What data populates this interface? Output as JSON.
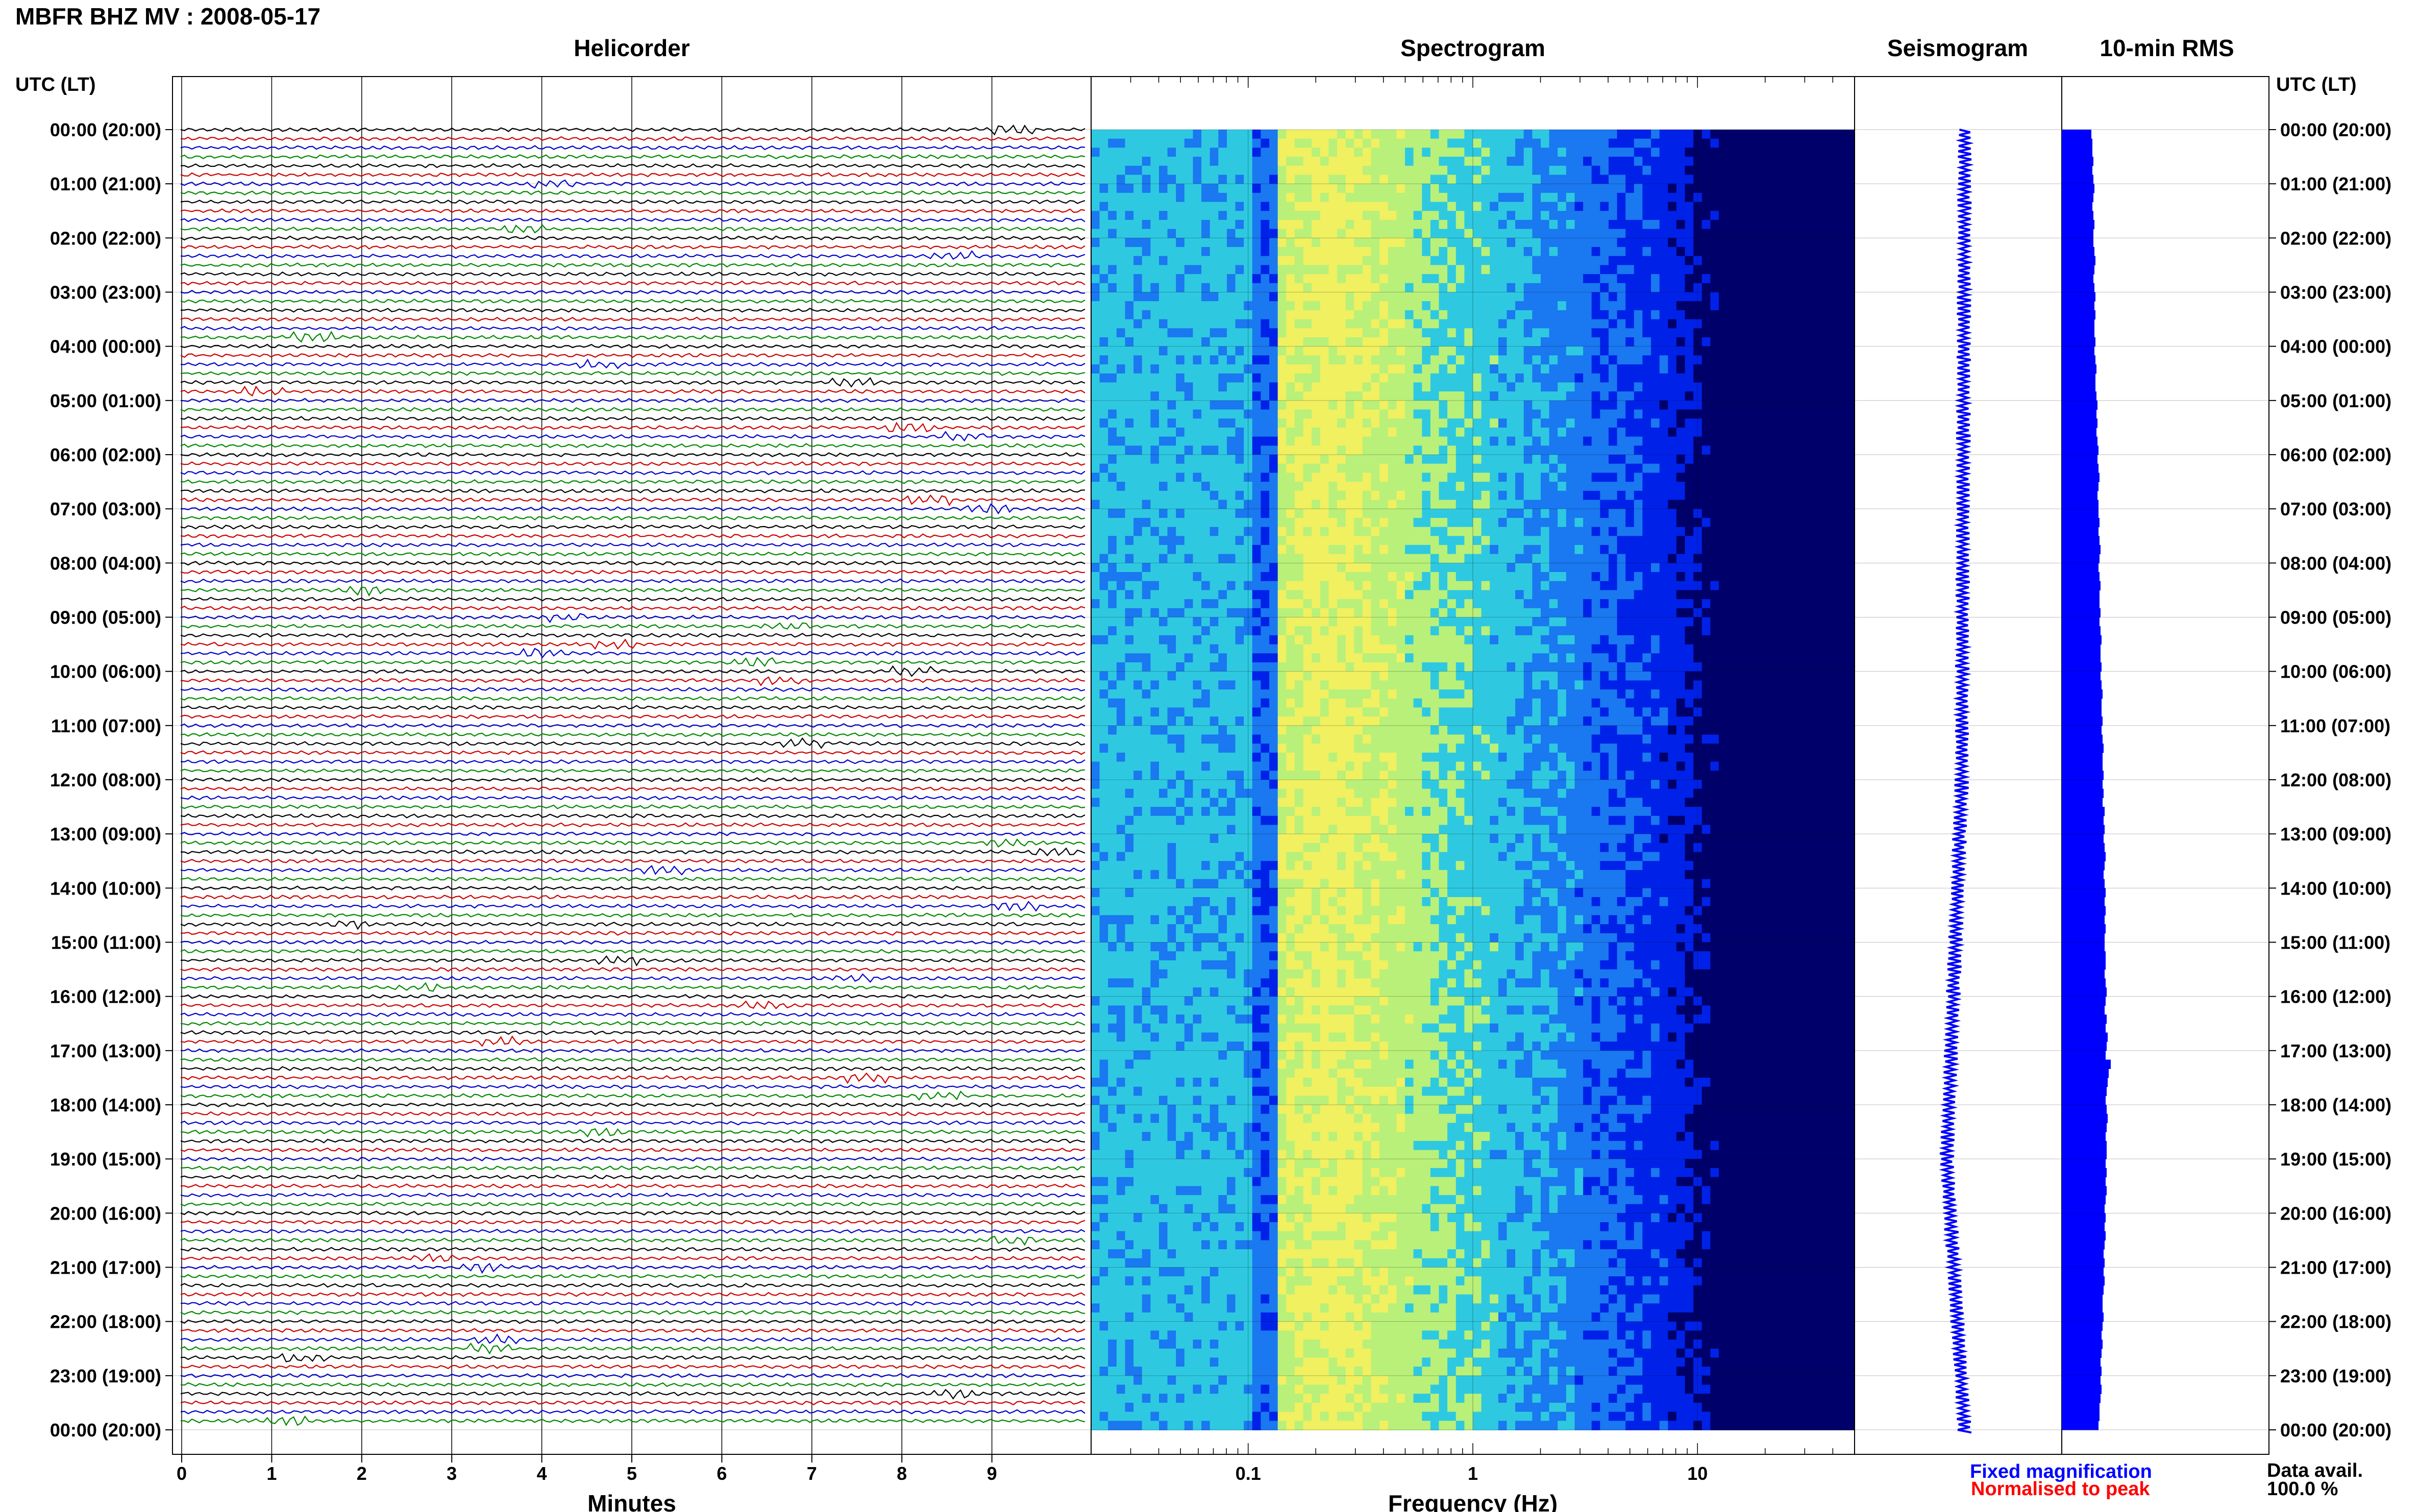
{
  "page_title": "MBFR BHZ MV : 2008-05-17",
  "panels": {
    "helicorder": "Helicorder",
    "spectrogram": "Spectrogram",
    "seismogram": "Seismogram",
    "rms": "10-min RMS"
  },
  "axis_headers": {
    "left": "UTC (LT)",
    "right": "UTC (LT)"
  },
  "x_labels": {
    "helicorder": "Minutes",
    "spectrogram": "Frequency (Hz)"
  },
  "legend": {
    "fixed": "Fixed magnification",
    "normalised": "Normalised to peak",
    "fixed_color": "#0000ff",
    "normalised_color": "#ff0000"
  },
  "availability": {
    "label": "Data avail.",
    "value": "100.0 %"
  },
  "chart_data": {
    "type": "heatmap",
    "station": "MBFR",
    "channel": "BHZ",
    "network": "MV",
    "date": "2008-05-17",
    "time_labels": [
      "00:00 (20:00)",
      "01:00 (21:00)",
      "02:00 (22:00)",
      "03:00 (23:00)",
      "04:00 (00:00)",
      "05:00 (01:00)",
      "06:00 (02:00)",
      "07:00 (03:00)",
      "08:00 (04:00)",
      "09:00 (05:00)",
      "10:00 (06:00)",
      "11:00 (07:00)",
      "12:00 (08:00)",
      "13:00 (09:00)",
      "14:00 (10:00)",
      "15:00 (11:00)",
      "16:00 (12:00)",
      "17:00 (13:00)",
      "18:00 (14:00)",
      "19:00 (15:00)",
      "20:00 (16:00)",
      "21:00 (17:00)",
      "22:00 (18:00)",
      "23:00 (19:00)",
      "00:00 (20:00)"
    ],
    "helicorder": {
      "x_ticks": [
        "0",
        "1",
        "2",
        "3",
        "4",
        "5",
        "6",
        "7",
        "8",
        "9"
      ],
      "xlim": [
        0,
        10
      ],
      "trace_colors": [
        "#000000",
        "#cc0000",
        "#0000cc",
        "#008800"
      ],
      "lines_per_hour": 6
    },
    "spectrogram": {
      "x_scale": "log",
      "xlim": [
        0.02,
        50
      ],
      "x_ticks": [
        "0.1",
        "1",
        "10"
      ],
      "peak_band_hz": [
        0.15,
        0.35
      ],
      "colormap": [
        "#00006b",
        "#0022e8",
        "#1a78f0",
        "#2ec9e0",
        "#b8f07a",
        "#f0f060"
      ]
    },
    "seismogram": {
      "color": "#0000ff"
    },
    "rms": {
      "color": "#0000ff",
      "values": [
        0.58,
        0.6,
        0.6,
        0.62,
        0.6,
        0.62,
        0.64,
        0.62,
        0.6,
        0.62,
        0.64,
        0.62,
        0.62,
        0.64,
        0.66,
        0.64,
        0.62,
        0.64,
        0.66,
        0.64,
        0.66,
        0.64,
        0.64,
        0.66,
        0.64,
        0.66,
        0.68,
        0.66,
        0.66,
        0.68,
        0.7,
        0.68,
        0.7,
        0.68,
        0.7,
        0.72,
        0.7,
        0.72,
        0.74,
        0.72,
        0.7,
        0.72,
        0.72,
        0.74,
        0.72,
        0.74,
        0.76,
        0.74,
        0.72,
        0.74,
        0.76,
        0.74,
        0.74,
        0.76,
        0.74,
        0.76,
        0.78,
        0.76,
        0.76,
        0.78,
        0.76,
        0.78,
        0.8,
        0.78,
        0.78,
        0.8,
        0.78,
        0.8,
        0.82,
        0.8,
        0.8,
        0.82,
        0.8,
        0.82,
        0.8,
        0.84,
        0.82,
        0.84,
        0.82,
        0.84,
        0.86,
        0.84,
        0.82,
        0.84,
        0.86,
        0.84,
        0.86,
        0.84,
        0.86,
        0.84,
        0.84,
        0.86,
        0.86,
        0.84,
        0.86,
        0.88,
        0.86,
        0.84,
        0.88,
        0.86,
        0.9,
        0.88,
        0.86,
        0.96,
        0.92,
        0.9,
        0.88,
        0.86,
        0.88,
        0.9,
        0.88,
        0.86,
        0.88,
        0.88,
        0.86,
        0.88,
        0.86,
        0.88,
        0.86,
        0.84,
        0.86,
        0.84,
        0.86,
        0.84,
        0.82,
        0.84,
        0.82,
        0.84,
        0.82,
        0.8,
        0.8,
        0.82,
        0.8,
        0.78,
        0.8,
        0.78,
        0.76,
        0.78,
        0.76,
        0.78,
        0.76,
        0.74,
        0.74,
        0.72
      ]
    }
  }
}
